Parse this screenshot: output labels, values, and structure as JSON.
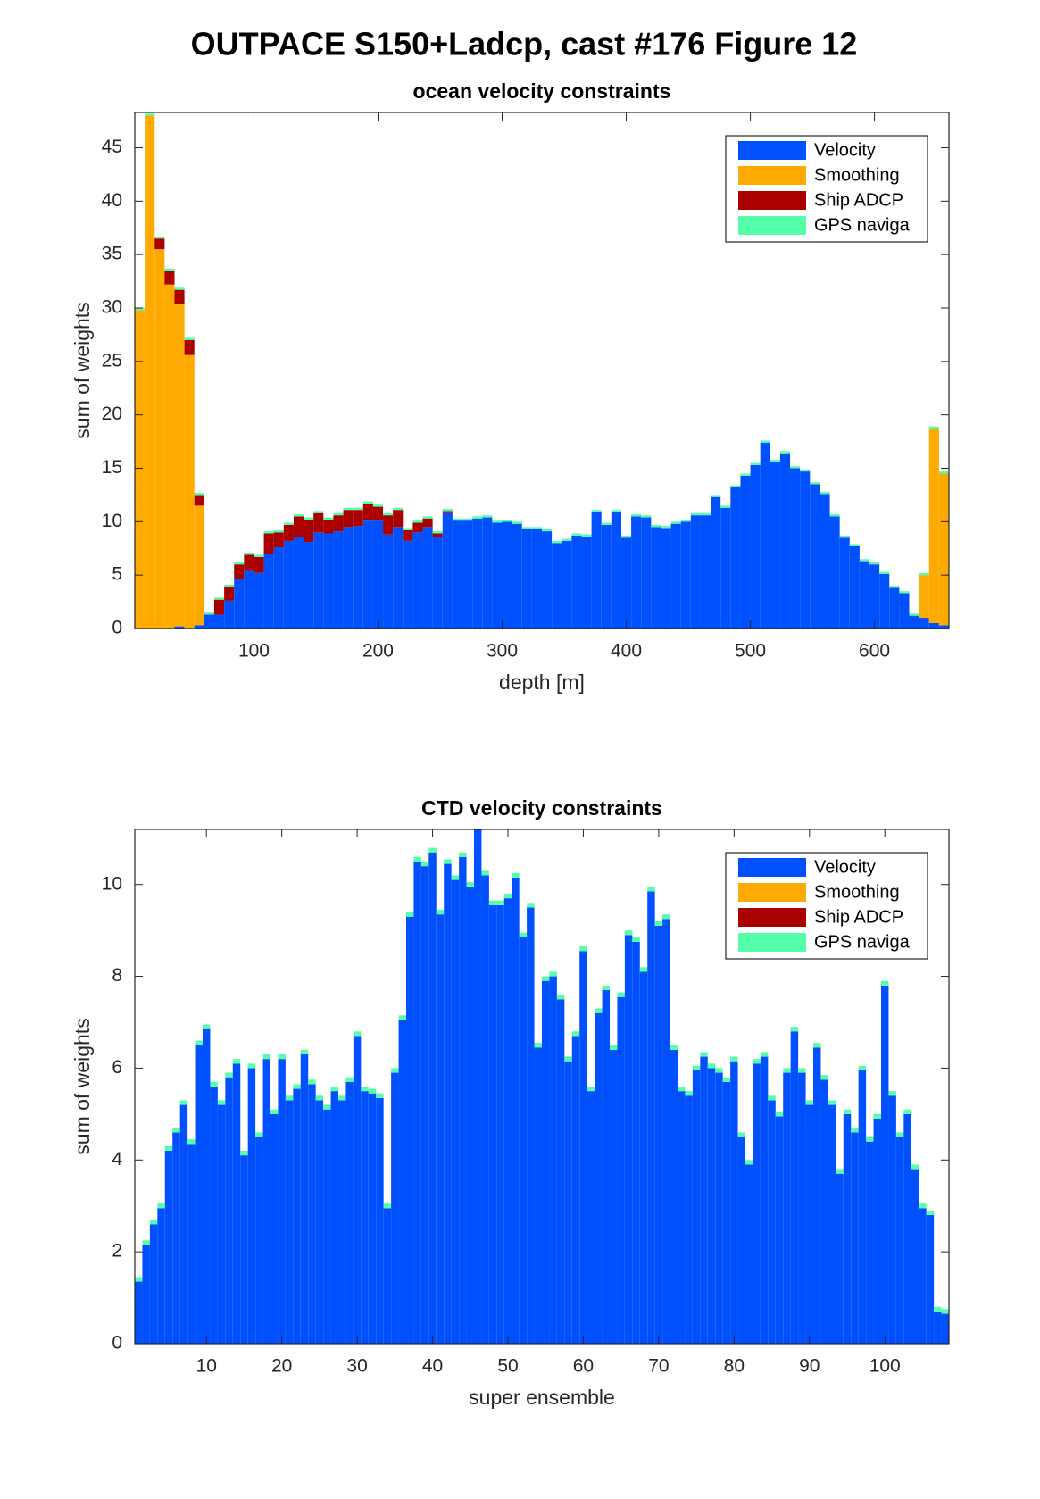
{
  "title": "OUTPACE S150+Ladcp, cast #176  Figure 12",
  "chart_data": [
    {
      "type": "bar",
      "stacked": true,
      "title": "ocean velocity constraints",
      "xlabel": "depth [m]",
      "ylabel": "sum of weights",
      "x": [
        8,
        16,
        24,
        32,
        40,
        48,
        56,
        64,
        72,
        80,
        88,
        96,
        104,
        112,
        120,
        128,
        136,
        144,
        152,
        160,
        168,
        176,
        184,
        192,
        200,
        208,
        216,
        224,
        232,
        240,
        248,
        256,
        264,
        272,
        280,
        288,
        296,
        304,
        312,
        320,
        328,
        336,
        344,
        352,
        360,
        368,
        376,
        384,
        392,
        400,
        408,
        416,
        424,
        432,
        440,
        448,
        456,
        464,
        472,
        480,
        488,
        496,
        504,
        512,
        520,
        528,
        536,
        544,
        552,
        560,
        568,
        576,
        584,
        592,
        600,
        608,
        616,
        624,
        632,
        640,
        648,
        656
      ],
      "series": [
        {
          "name": "Velocity",
          "color": "#0050ff",
          "values": [
            0,
            0,
            0,
            0,
            0.2,
            0,
            0.3,
            1.3,
            1.3,
            2.6,
            4.6,
            5.4,
            5.2,
            7.0,
            7.6,
            8.2,
            8.6,
            8.1,
            9.0,
            8.9,
            9.1,
            9.5,
            9.6,
            10.1,
            10.1,
            8.8,
            9.5,
            8.2,
            9.0,
            9.5,
            8.6,
            10.8,
            10.1,
            10.1,
            10.3,
            10.4,
            9.9,
            10.0,
            9.8,
            9.3,
            9.3,
            9.1,
            8.0,
            8.2,
            8.7,
            8.6,
            10.9,
            9.7,
            10.9,
            8.5,
            10.5,
            10.4,
            9.5,
            9.4,
            9.8,
            10.0,
            10.6,
            10.6,
            12.3,
            11.3,
            13.2,
            14.3,
            15.3,
            17.4,
            15.6,
            16.4,
            15.0,
            14.7,
            13.5,
            12.6,
            10.5,
            8.5,
            7.7,
            6.3,
            6.0,
            5.1,
            3.8,
            3.3,
            1.2,
            1.0,
            0.5,
            0.3
          ]
        },
        {
          "name": "Smoothing",
          "color": "#ffaa00",
          "values": [
            29.8,
            48,
            35.5,
            32.2,
            30.2,
            25.6,
            11.2,
            0,
            0,
            0,
            0,
            0,
            0,
            0,
            0,
            0,
            0,
            0,
            0,
            0,
            0,
            0,
            0,
            0,
            0,
            0,
            0,
            0,
            0,
            0,
            0,
            0,
            0,
            0,
            0,
            0,
            0,
            0,
            0,
            0,
            0,
            0,
            0,
            0,
            0,
            0,
            0,
            0,
            0,
            0,
            0,
            0,
            0,
            0,
            0,
            0,
            0,
            0,
            0,
            0,
            0,
            0,
            0,
            0,
            0,
            0,
            0,
            0,
            0,
            0,
            0,
            0,
            0,
            0,
            0,
            0,
            0,
            0,
            0,
            4.0,
            18.2,
            14.2
          ]
        },
        {
          "name": "Ship ADCP",
          "color": "#aa0000",
          "values": [
            0,
            0,
            1.0,
            1.3,
            1.3,
            1.4,
            1.0,
            0,
            1.4,
            1.3,
            1.4,
            1.5,
            1.5,
            1.9,
            1.4,
            1.5,
            1.9,
            2.1,
            1.8,
            1.3,
            1.5,
            1.6,
            1.5,
            1.6,
            1.3,
            1.8,
            1.6,
            1.0,
            0.9,
            0.8,
            0.3,
            0.2,
            0,
            0,
            0,
            0,
            0,
            0,
            0,
            0,
            0,
            0,
            0,
            0,
            0,
            0,
            0,
            0,
            0,
            0,
            0,
            0,
            0,
            0,
            0,
            0,
            0,
            0,
            0,
            0,
            0,
            0,
            0,
            0,
            0,
            0,
            0,
            0,
            0,
            0,
            0,
            0,
            0,
            0,
            0,
            0,
            0,
            0,
            0,
            0,
            0,
            0
          ]
        },
        {
          "name": "GPS naviga",
          "color": "#55ffaa",
          "values": [
            0.2,
            0.2,
            0.2,
            0.2,
            0.2,
            0.2,
            0.2,
            0.2,
            0.2,
            0.2,
            0.2,
            0.2,
            0.2,
            0.2,
            0.2,
            0.2,
            0.2,
            0.2,
            0.2,
            0.2,
            0.2,
            0.2,
            0.2,
            0.2,
            0.2,
            0.2,
            0.2,
            0.2,
            0.2,
            0.2,
            0.2,
            0.2,
            0.2,
            0.2,
            0.2,
            0.2,
            0.2,
            0.2,
            0.2,
            0.2,
            0.2,
            0.2,
            0.2,
            0.2,
            0.2,
            0.2,
            0.2,
            0.2,
            0.2,
            0.2,
            0.2,
            0.2,
            0.2,
            0.2,
            0.2,
            0.2,
            0.2,
            0.2,
            0.2,
            0.2,
            0.2,
            0.2,
            0.2,
            0.2,
            0.2,
            0.2,
            0.2,
            0.2,
            0.2,
            0.2,
            0.2,
            0.2,
            0.2,
            0.2,
            0.2,
            0.2,
            0.2,
            0.2,
            0.2,
            0.2,
            0.2,
            0.2
          ]
        }
      ],
      "xlim": [
        4,
        660
      ],
      "ylim": [
        0,
        48.3
      ],
      "xticks": [
        100,
        200,
        300,
        400,
        500,
        600
      ],
      "yticks": [
        0,
        5,
        10,
        15,
        20,
        25,
        30,
        35,
        40,
        45
      ],
      "legend": "northeast"
    },
    {
      "type": "bar",
      "stacked": true,
      "title": "CTD velocity constraints",
      "xlabel": "super ensemble",
      "ylabel": "sum of weights",
      "x": [
        1,
        2,
        3,
        4,
        5,
        6,
        7,
        8,
        9,
        10,
        11,
        12,
        13,
        14,
        15,
        16,
        17,
        18,
        19,
        20,
        21,
        22,
        23,
        24,
        25,
        26,
        27,
        28,
        29,
        30,
        31,
        32,
        33,
        34,
        35,
        36,
        37,
        38,
        39,
        40,
        41,
        42,
        43,
        44,
        45,
        46,
        47,
        48,
        49,
        50,
        51,
        52,
        53,
        54,
        55,
        56,
        57,
        58,
        59,
        60,
        61,
        62,
        63,
        64,
        65,
        66,
        67,
        68,
        69,
        70,
        71,
        72,
        73,
        74,
        75,
        76,
        77,
        78,
        79,
        80,
        81,
        82,
        83,
        84,
        85,
        86,
        87,
        88,
        89,
        90,
        91,
        92,
        93,
        94,
        95,
        96,
        97,
        98,
        99,
        100,
        101,
        102,
        103,
        104,
        105,
        106,
        107,
        108
      ],
      "series": [
        {
          "name": "Velocity",
          "color": "#0050ff",
          "values": [
            1.35,
            2.15,
            2.6,
            2.95,
            4.2,
            4.6,
            5.2,
            4.35,
            6.5,
            6.85,
            5.6,
            5.2,
            5.8,
            6.1,
            4.1,
            6.0,
            4.5,
            6.2,
            5.0,
            6.2,
            5.3,
            5.55,
            6.3,
            5.65,
            5.3,
            5.1,
            5.5,
            5.3,
            5.7,
            6.7,
            5.5,
            5.45,
            5.35,
            2.95,
            5.9,
            7.05,
            9.3,
            10.5,
            10.4,
            10.7,
            9.35,
            10.45,
            10.1,
            10.6,
            9.95,
            11.2,
            10.2,
            9.55,
            9.55,
            9.7,
            10.15,
            8.85,
            9.5,
            6.45,
            7.9,
            8.0,
            7.5,
            6.15,
            6.7,
            8.55,
            5.5,
            7.2,
            7.7,
            6.4,
            7.55,
            8.9,
            8.75,
            8.1,
            9.85,
            9.1,
            9.25,
            6.4,
            5.5,
            5.4,
            5.95,
            6.25,
            6.0,
            5.9,
            5.7,
            6.15,
            4.5,
            3.9,
            6.1,
            6.25,
            5.3,
            4.95,
            5.9,
            6.8,
            5.9,
            5.2,
            6.45,
            5.75,
            5.2,
            3.7,
            5.0,
            4.6,
            5.95,
            4.4,
            4.9,
            7.8,
            5.4,
            4.5,
            5.0,
            3.8,
            2.95,
            2.8,
            0.7,
            0.65
          ]
        },
        {
          "name": "Smoothing",
          "color": "#ffaa00",
          "values": [
            0,
            0,
            0,
            0,
            0,
            0,
            0,
            0,
            0,
            0,
            0,
            0,
            0,
            0,
            0,
            0,
            0,
            0,
            0,
            0,
            0,
            0,
            0,
            0,
            0,
            0,
            0,
            0,
            0,
            0,
            0,
            0,
            0,
            0,
            0,
            0,
            0,
            0,
            0,
            0,
            0,
            0,
            0,
            0,
            0,
            0,
            0,
            0,
            0,
            0,
            0,
            0,
            0,
            0,
            0,
            0,
            0,
            0,
            0,
            0,
            0,
            0,
            0,
            0,
            0,
            0,
            0,
            0,
            0,
            0,
            0,
            0,
            0,
            0,
            0,
            0,
            0,
            0,
            0,
            0,
            0,
            0,
            0,
            0,
            0,
            0,
            0,
            0,
            0,
            0,
            0,
            0,
            0,
            0,
            0,
            0,
            0,
            0,
            0,
            0,
            0,
            0,
            0,
            0,
            0,
            0,
            0,
            0
          ]
        },
        {
          "name": "Ship ADCP",
          "color": "#aa0000",
          "values": [
            0,
            0,
            0,
            0,
            0,
            0,
            0,
            0,
            0,
            0,
            0,
            0,
            0,
            0,
            0,
            0,
            0,
            0,
            0,
            0,
            0,
            0,
            0,
            0,
            0,
            0,
            0,
            0,
            0,
            0,
            0,
            0,
            0,
            0,
            0,
            0,
            0,
            0,
            0,
            0,
            0,
            0,
            0,
            0,
            0,
            0,
            0,
            0,
            0,
            0,
            0,
            0,
            0,
            0,
            0,
            0,
            0,
            0,
            0,
            0,
            0,
            0,
            0,
            0,
            0,
            0,
            0,
            0,
            0,
            0,
            0,
            0,
            0,
            0,
            0,
            0,
            0,
            0,
            0,
            0,
            0,
            0,
            0,
            0,
            0,
            0,
            0,
            0,
            0,
            0,
            0,
            0,
            0,
            0,
            0,
            0,
            0,
            0,
            0,
            0,
            0,
            0,
            0,
            0,
            0,
            0,
            0,
            0
          ]
        },
        {
          "name": "GPS naviga",
          "color": "#55ffaa",
          "values": [
            0.1,
            0.1,
            0.1,
            0.1,
            0.1,
            0.1,
            0.1,
            0.1,
            0.1,
            0.1,
            0.1,
            0.1,
            0.1,
            0.1,
            0.1,
            0.1,
            0.1,
            0.1,
            0.1,
            0.1,
            0.1,
            0.1,
            0.1,
            0.1,
            0.1,
            0.1,
            0.1,
            0.1,
            0.1,
            0.1,
            0.1,
            0.1,
            0.1,
            0.1,
            0.1,
            0.1,
            0.1,
            0.1,
            0.1,
            0.1,
            0.1,
            0.1,
            0.1,
            0.1,
            0.1,
            0.1,
            0.1,
            0.1,
            0.1,
            0.1,
            0.1,
            0.1,
            0.1,
            0.1,
            0.1,
            0.1,
            0.1,
            0.1,
            0.1,
            0.1,
            0.1,
            0.1,
            0.1,
            0.1,
            0.1,
            0.1,
            0.1,
            0.1,
            0.1,
            0.1,
            0.1,
            0.1,
            0.1,
            0.1,
            0.1,
            0.1,
            0.1,
            0.1,
            0.1,
            0.1,
            0.1,
            0.1,
            0.1,
            0.1,
            0.1,
            0.1,
            0.1,
            0.1,
            0.1,
            0.1,
            0.1,
            0.1,
            0.1,
            0.1,
            0.1,
            0.1,
            0.1,
            0.1,
            0.1,
            0.1,
            0.1,
            0.1,
            0.1,
            0.1,
            0.1,
            0.1,
            0.1,
            0.1
          ]
        }
      ],
      "xlim": [
        0.5,
        108.5
      ],
      "ylim": [
        0,
        11.2
      ],
      "xticks": [
        10,
        20,
        30,
        40,
        50,
        60,
        70,
        80,
        90,
        100
      ],
      "yticks": [
        0,
        2,
        4,
        6,
        8,
        10
      ],
      "legend": "northeast"
    }
  ]
}
